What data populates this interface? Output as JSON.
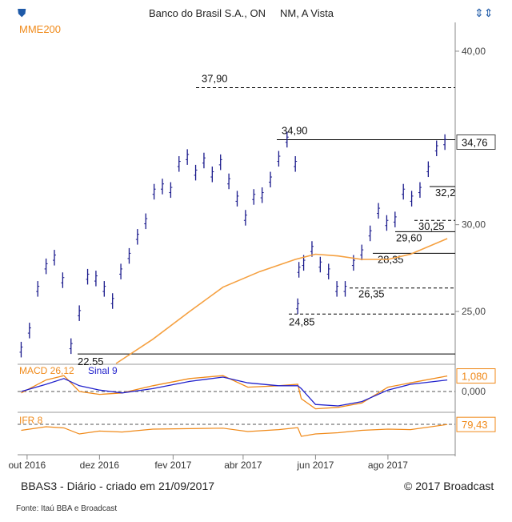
{
  "header": {
    "title": "Banco do Brasil S.A., ON",
    "subtitle": "NM, A Vista",
    "ma_label": "MME200",
    "left_icon": "shield-arrow-icon",
    "right_icon": "updown-arrows-icon"
  },
  "footer": {
    "caption": "BBAS3 - Diário - criado em 21/09/2017",
    "copyright": "© 2017 Broadcast",
    "source": "Fonte: Itaú BBA e Broadcast"
  },
  "colors": {
    "price": "#1a1a8c",
    "ma": "#f5a040",
    "macd": "#f08a1a",
    "signal": "#2222cc",
    "ifr": "#f08a1a",
    "ref": "#000000"
  },
  "chart_data": [
    {
      "type": "line",
      "subtype": "ohlc-bars",
      "title": "Banco do Brasil S.A., ON",
      "x_ticks": [
        "out 2016",
        "dez 2016",
        "fev 2017",
        "abr 2017",
        "jun 2017",
        "ago 2017"
      ],
      "y_ticks": [
        "25,00",
        "30,00",
        "40,00"
      ],
      "ylim": [
        21.8,
        42.8
      ],
      "series": [
        {
          "name": "BBAS3",
          "x": [
            "2016-09-26",
            "2016-10-03",
            "2016-10-10",
            "2016-10-17",
            "2016-10-24",
            "2016-10-31",
            "2016-11-07",
            "2016-11-14",
            "2016-11-21",
            "2016-11-28",
            "2016-12-05",
            "2016-12-12",
            "2016-12-19",
            "2016-12-26",
            "2017-01-02",
            "2017-01-09",
            "2017-01-16",
            "2017-01-23",
            "2017-01-30",
            "2017-02-06",
            "2017-02-13",
            "2017-02-20",
            "2017-02-27",
            "2017-03-06",
            "2017-03-13",
            "2017-03-20",
            "2017-03-27",
            "2017-04-03",
            "2017-04-10",
            "2017-04-17",
            "2017-04-24",
            "2017-05-01",
            "2017-05-08",
            "2017-05-15",
            "2017-05-17",
            "2017-05-18",
            "2017-05-22",
            "2017-05-29",
            "2017-06-05",
            "2017-06-12",
            "2017-06-19",
            "2017-06-26",
            "2017-07-03",
            "2017-07-10",
            "2017-07-17",
            "2017-07-24",
            "2017-07-31",
            "2017-08-07",
            "2017-08-14",
            "2017-08-21",
            "2017-08-28",
            "2017-09-04",
            "2017-09-11",
            "2017-09-18"
          ],
          "values": [
            22.8,
            23.9,
            26.3,
            27.6,
            28.1,
            26.8,
            23.0,
            24.9,
            27.0,
            26.9,
            26.3,
            25.6,
            27.3,
            28.2,
            29.3,
            30.2,
            31.9,
            32.2,
            32.0,
            33.5,
            33.9,
            33.0,
            33.7,
            32.9,
            33.6,
            32.5,
            31.5,
            30.4,
            31.6,
            31.7,
            32.6,
            33.8,
            34.9,
            33.5,
            25.3,
            27.4,
            27.8,
            28.6,
            27.7,
            27.3,
            26.3,
            26.3,
            27.8,
            28.4,
            29.5,
            30.8,
            30.1,
            30.3,
            31.9,
            31.5,
            32.0,
            33.2,
            34.4,
            34.76
          ]
        },
        {
          "name": "MME200",
          "x": [
            "2016-12-15",
            "2017-01-15",
            "2017-02-15",
            "2017-03-15",
            "2017-04-15",
            "2017-05-15",
            "2017-06-01",
            "2017-06-20",
            "2017-07-10",
            "2017-08-01",
            "2017-08-20",
            "2017-09-20"
          ],
          "values": [
            22.0,
            23.4,
            25.0,
            26.4,
            27.3,
            28.0,
            28.3,
            28.2,
            28.0,
            28.0,
            28.3,
            29.2
          ]
        }
      ],
      "reference_levels": [
        {
          "label": "37,90",
          "value": 37.9,
          "style": "dashed"
        },
        {
          "label": "34,90",
          "value": 34.9,
          "style": "solid"
        },
        {
          "label": "32,2",
          "value": 32.2,
          "style": "solid"
        },
        {
          "label": "30,25",
          "value": 30.25,
          "style": "dashed"
        },
        {
          "label": "29,60",
          "value": 29.6,
          "style": "solid"
        },
        {
          "label": "28,35",
          "value": 28.35,
          "style": "solid"
        },
        {
          "label": "26,35",
          "value": 26.35,
          "style": "dashed"
        },
        {
          "label": "24,85",
          "value": 24.85,
          "style": "dashed"
        },
        {
          "label": "22.55",
          "value": 22.55,
          "style": "solid"
        }
      ],
      "last_value_label": "34,76"
    },
    {
      "type": "line",
      "title": "MACD 26,12",
      "series_labels": [
        "MACD 26,12",
        "Sinal 9"
      ],
      "y_ticks": [
        "0,000"
      ],
      "last_value_label": "1,080",
      "ylim": [
        -1.5,
        1.6
      ],
      "series": [
        {
          "name": "MACD 26,12",
          "x": [
            "2016-09-26",
            "2016-10-17",
            "2016-11-01",
            "2016-11-14",
            "2016-12-01",
            "2016-12-20",
            "2017-01-15",
            "2017-02-15",
            "2017-03-15",
            "2017-04-05",
            "2017-05-01",
            "2017-05-17",
            "2017-05-20",
            "2017-06-01",
            "2017-06-20",
            "2017-07-10",
            "2017-08-01",
            "2017-08-20",
            "2017-09-20"
          ],
          "values": [
            -0.1,
            0.8,
            1.1,
            0.0,
            -0.2,
            -0.1,
            0.4,
            0.9,
            1.1,
            0.3,
            0.4,
            0.5,
            -0.5,
            -1.2,
            -1.1,
            -0.8,
            0.3,
            0.6,
            1.08
          ]
        },
        {
          "name": "Sinal 9",
          "x": [
            "2016-09-26",
            "2016-10-17",
            "2016-11-01",
            "2016-11-14",
            "2016-12-01",
            "2016-12-20",
            "2017-01-15",
            "2017-02-15",
            "2017-03-15",
            "2017-04-05",
            "2017-05-01",
            "2017-05-17",
            "2017-05-20",
            "2017-06-01",
            "2017-06-20",
            "2017-07-10",
            "2017-08-01",
            "2017-08-20",
            "2017-09-20"
          ],
          "values": [
            0.0,
            0.5,
            0.9,
            0.4,
            0.1,
            -0.1,
            0.2,
            0.7,
            1.0,
            0.6,
            0.4,
            0.4,
            0.2,
            -0.9,
            -1.0,
            -0.7,
            0.1,
            0.5,
            0.8
          ]
        }
      ]
    },
    {
      "type": "line",
      "title": "IFR 8",
      "last_value_label": "79,43",
      "ylim": [
        20,
        90
      ],
      "series": [
        {
          "name": "IFR 8",
          "x": [
            "2016-09-26",
            "2016-10-17",
            "2016-11-01",
            "2016-11-14",
            "2016-12-01",
            "2016-12-20",
            "2017-01-15",
            "2017-02-15",
            "2017-03-15",
            "2017-04-05",
            "2017-05-01",
            "2017-05-17",
            "2017-05-20",
            "2017-06-01",
            "2017-06-20",
            "2017-07-10",
            "2017-08-01",
            "2017-08-20",
            "2017-09-20"
          ],
          "values": [
            55,
            70,
            65,
            40,
            52,
            48,
            60,
            62,
            64,
            50,
            58,
            66,
            30,
            40,
            45,
            55,
            60,
            58,
            79.43
          ]
        }
      ]
    }
  ]
}
